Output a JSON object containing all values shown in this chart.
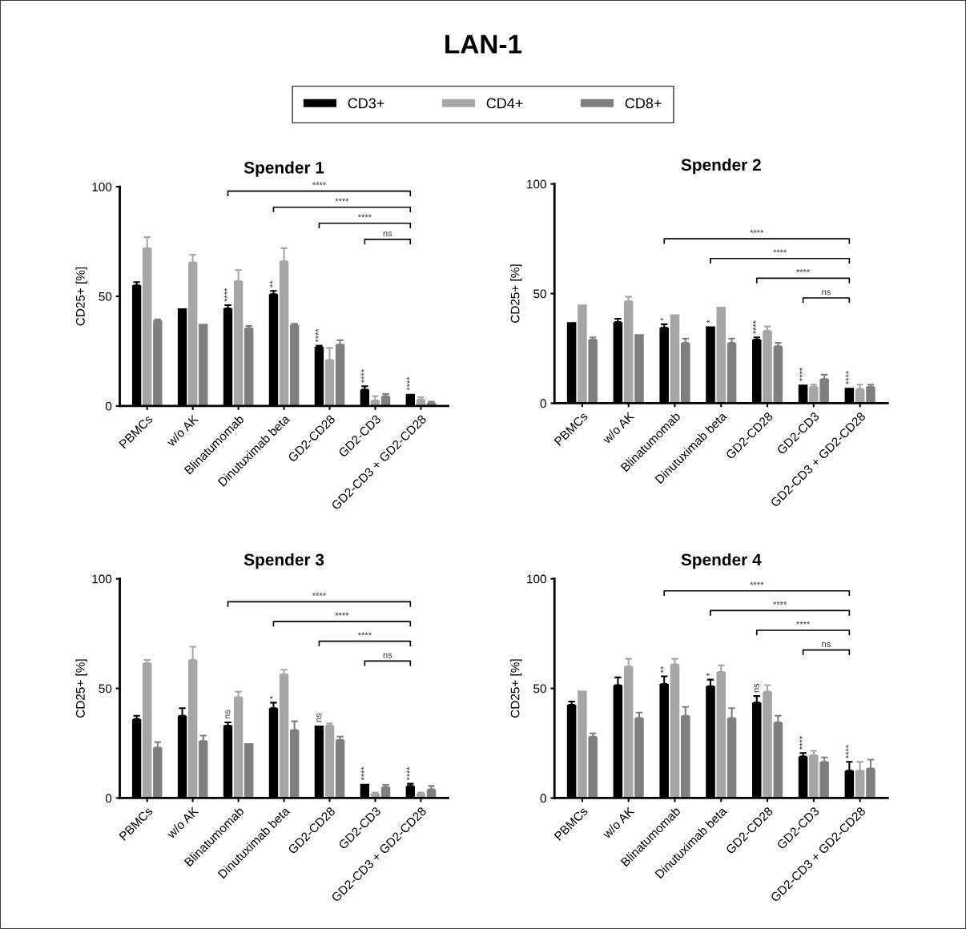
{
  "chart_data": [
    {
      "type": "bar",
      "title": "Spender 1",
      "ylabel": "CD25+ [%]",
      "legend": "top",
      "categories": [
        "PBMCs",
        "w/o AK",
        "Blinatumomab",
        "Dinutuximab beta",
        "GD2-CD28",
        "GD2-CD3",
        "GD2-CD3 + GD2-CD28"
      ],
      "ylim": [
        0,
        100
      ],
      "yticks": [
        0,
        50,
        100
      ],
      "series": [
        {
          "name": "CD3+",
          "color": "#000000",
          "values": [
            55,
            44.5,
            44.5,
            51,
            27,
            7.5,
            5.5
          ],
          "errors": [
            [
              55,
              56.5
            ],
            null,
            [
              44.5,
              46
            ],
            [
              51,
              52.5
            ],
            [
              27,
              27.5
            ],
            [
              7.5,
              9
            ],
            null
          ]
        },
        {
          "name": "CD4+",
          "color": "#a6a6a6",
          "values": [
            72,
            65.5,
            57,
            66,
            21,
            2.5,
            3
          ],
          "errors": [
            [
              72,
              77
            ],
            [
              65.5,
              69
            ],
            [
              57,
              62
            ],
            [
              66,
              72
            ],
            [
              21,
              26.5
            ],
            [
              2.5,
              4.5
            ],
            [
              3,
              4
            ]
          ]
        },
        {
          "name": "CD8+",
          "color": "#7f7f7f",
          "values": [
            39,
            37.5,
            35.5,
            37,
            28,
            4.5,
            1.5
          ],
          "errors": [
            [
              39,
              39.5
            ],
            null,
            [
              35.5,
              36.5
            ],
            [
              37,
              37.5
            ],
            [
              28,
              30
            ],
            [
              4.5,
              5.5
            ],
            [
              1.5,
              2
            ]
          ]
        }
      ],
      "annotations": [
        "LAN-1",
        "****",
        "**",
        "****",
        "****",
        "****",
        "****",
        "****",
        "****",
        "ns"
      ]
    },
    {
      "type": "bar",
      "title": "Spender 2",
      "ylabel": "CD25+ [%]",
      "categories": [
        "PBMCs",
        "w/o AK",
        "Blinatumomab",
        "Dinutuximab beta",
        "GD2-CD28",
        "GD2-CD3",
        "GD2-CD3 + GD2-CD28"
      ],
      "ylim": [
        0,
        100
      ],
      "yticks": [
        0,
        50,
        100
      ],
      "series": [
        {
          "color": "#000000",
          "values": [
            37,
            37,
            34.5,
            35,
            29,
            8.5,
            7
          ],
          "errors": [
            null,
            [
              37,
              38.5
            ],
            [
              34.5,
              36
            ],
            null,
            [
              29,
              30
            ],
            null,
            null
          ]
        },
        {
          "color": "#a6a6a6",
          "values": [
            45,
            46.5,
            40.5,
            44,
            33,
            7.5,
            6.5
          ],
          "errors": [
            null,
            [
              46.5,
              48.5
            ],
            null,
            null,
            [
              33,
              35
            ],
            [
              7.5,
              8.5
            ],
            [
              6.5,
              8.5
            ]
          ]
        },
        {
          "color": "#7f7f7f",
          "values": [
            29,
            31.5,
            27.5,
            27.5,
            26,
            11,
            7.5
          ],
          "errors": [
            [
              29,
              30
            ],
            null,
            [
              27.5,
              29.5
            ],
            [
              27.5,
              29.5
            ],
            [
              26,
              27.5
            ],
            [
              11,
              13
            ],
            [
              7.5,
              8.5
            ]
          ]
        }
      ],
      "annotations": [
        "*",
        "*",
        "****",
        "****",
        "****",
        "****",
        "****",
        "****",
        "ns"
      ]
    },
    {
      "type": "bar",
      "title": "Spender 3",
      "ylabel": "CD25+ [%]",
      "categories": [
        "PBMCs",
        "w/o AK",
        "Blinatumomab",
        "Dinutuximab beta",
        "GD2-CD28",
        "GD2-CD3",
        "GD2-CD3 + GD2-CD28"
      ],
      "ylim": [
        0,
        100
      ],
      "yticks": [
        0,
        50,
        100
      ],
      "series": [
        {
          "color": "#000000",
          "values": [
            36,
            37.5,
            33,
            41,
            33,
            6.5,
            5.5
          ],
          "errors": [
            [
              36,
              37.5
            ],
            [
              37.5,
              41
            ],
            [
              33,
              34.5
            ],
            [
              41,
              43.5
            ],
            null,
            null,
            [
              5.5,
              6.5
            ]
          ]
        },
        {
          "color": "#a6a6a6",
          "values": [
            61.5,
            63,
            46,
            56.5,
            33,
            2,
            2
          ],
          "errors": [
            [
              61.5,
              63
            ],
            [
              63,
              69
            ],
            [
              46,
              48.5
            ],
            [
              56.5,
              58.5
            ],
            [
              33,
              34
            ],
            [
              2,
              2.5
            ],
            [
              2,
              2.5
            ]
          ]
        },
        {
          "color": "#7f7f7f",
          "values": [
            23,
            26,
            25,
            31,
            26.5,
            5,
            4
          ],
          "errors": [
            [
              23,
              25.5
            ],
            [
              26,
              28.5
            ],
            null,
            [
              31,
              35
            ],
            [
              26.5,
              28
            ],
            [
              5,
              6
            ],
            [
              4,
              5.5
            ]
          ]
        }
      ],
      "annotations": [
        "ns",
        "*",
        "ns",
        "****",
        "****",
        "****",
        "****",
        "****",
        "ns"
      ]
    },
    {
      "type": "bar",
      "title": "Spender 4",
      "ylabel": "CD25+ [%]",
      "categories": [
        "PBMCs",
        "w/o AK",
        "Blinatumomab",
        "Dinutuximab beta",
        "GD2-CD28",
        "GD2-CD3",
        "GD2-CD3 + GD2-CD28"
      ],
      "ylim": [
        0,
        100
      ],
      "yticks": [
        0,
        50,
        100
      ],
      "series": [
        {
          "color": "#000000",
          "values": [
            42.5,
            51.5,
            52,
            51,
            43.5,
            19,
            12.5
          ],
          "errors": [
            [
              42.5,
              44
            ],
            [
              51.5,
              55
            ],
            [
              52,
              55.5
            ],
            [
              51,
              54
            ],
            [
              43.5,
              46.5
            ],
            [
              19,
              20.5
            ],
            [
              12.5,
              16.5
            ]
          ]
        },
        {
          "color": "#a6a6a6",
          "values": [
            49,
            60,
            61,
            57.5,
            48.5,
            19.5,
            12.5
          ],
          "errors": [
            null,
            [
              60,
              63.5
            ],
            [
              61,
              63.5
            ],
            [
              57.5,
              60.5
            ],
            [
              48.5,
              51.5
            ],
            [
              19.5,
              21.5
            ],
            [
              12.5,
              16.5
            ]
          ]
        },
        {
          "color": "#7f7f7f",
          "values": [
            28,
            36.5,
            37.5,
            36.5,
            34.5,
            16.5,
            13.5
          ],
          "errors": [
            [
              28,
              29.5
            ],
            [
              36.5,
              39
            ],
            [
              37.5,
              41.5
            ],
            [
              36.5,
              41
            ],
            [
              34.5,
              37.5
            ],
            [
              16.5,
              18.5
            ],
            [
              13.5,
              17.5
            ]
          ]
        }
      ],
      "annotations": [
        "**",
        "*",
        "ns",
        "****",
        "****",
        "****",
        "****",
        "****",
        "ns"
      ]
    }
  ]
}
